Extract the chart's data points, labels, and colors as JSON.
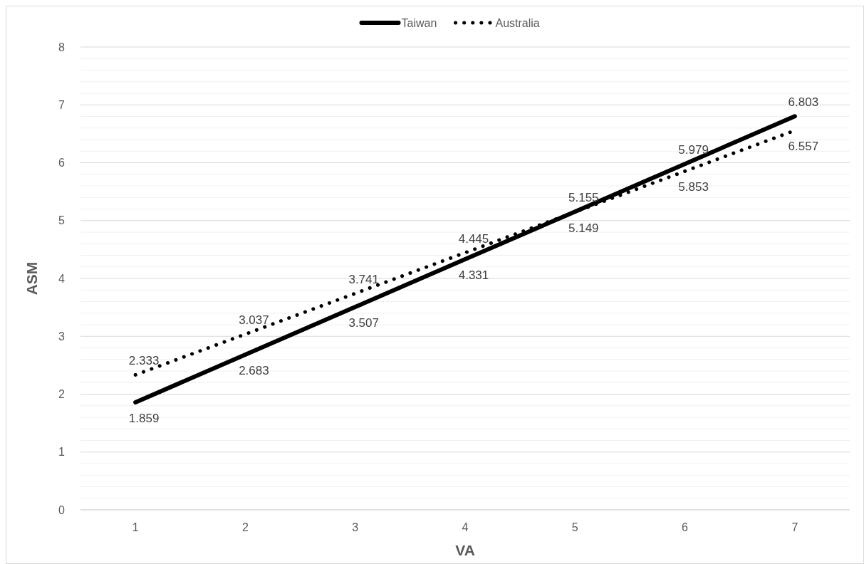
{
  "chart_data": {
    "type": "line",
    "xlabel": "VA",
    "ylabel": "ASM",
    "categories": [
      "1",
      "2",
      "3",
      "4",
      "5",
      "6",
      "7"
    ],
    "series": [
      {
        "name": "Taiwan",
        "color": "#000000",
        "line_style": "solid",
        "values": [
          1.859,
          2.683,
          3.507,
          4.331,
          5.155,
          5.979,
          6.803
        ]
      },
      {
        "name": "Australia",
        "color": "#000000",
        "line_style": "dotted",
        "values": [
          2.333,
          3.037,
          3.741,
          4.445,
          5.149,
          5.853,
          6.557
        ]
      }
    ],
    "ylim": [
      0,
      8
    ],
    "yticks": [
      0,
      {
        "value": 0.2,
        "label": null
      },
      {
        "value": 0.4,
        "label": null
      },
      {
        "value": 0.6,
        "label": null
      },
      {
        "value": 0.8,
        "label": null
      },
      1,
      {
        "value": 1.2,
        "label": null
      },
      {
        "value": 1.4,
        "label": null
      },
      {
        "value": 1.6,
        "label": null
      },
      {
        "value": 1.8,
        "label": null
      },
      2,
      {
        "value": 2.2,
        "label": null
      },
      {
        "value": 2.4,
        "label": null
      },
      {
        "value": 2.6,
        "label": null
      },
      {
        "value": 2.8,
        "label": null
      },
      3,
      {
        "value": 3.2,
        "label": null
      },
      {
        "value": 3.4,
        "label": null
      },
      {
        "value": 3.6,
        "label": null
      },
      {
        "value": 3.8,
        "label": null
      },
      4,
      {
        "value": 4.2,
        "label": null
      },
      {
        "value": 4.4,
        "label": null
      },
      {
        "value": 4.6,
        "label": null
      },
      {
        "value": 4.8,
        "label": null
      },
      5,
      {
        "value": 5.2,
        "label": null
      },
      {
        "value": 5.4,
        "label": null
      },
      {
        "value": 5.6,
        "label": null
      },
      {
        "value": 5.8,
        "label": null
      },
      6,
      {
        "value": 6.2,
        "label": null
      },
      {
        "value": 6.4,
        "label": null
      },
      {
        "value": 6.6,
        "label": null
      },
      {
        "value": 6.8,
        "label": null
      },
      7,
      {
        "value": 7.2,
        "label": null
      },
      {
        "value": 7.4,
        "label": null
      },
      {
        "value": 7.6,
        "label": null
      },
      {
        "value": 7.8,
        "label": null
      },
      8
    ],
    "grid": "y",
    "legend": "top",
    "marker": "none",
    "data_labels": true
  }
}
